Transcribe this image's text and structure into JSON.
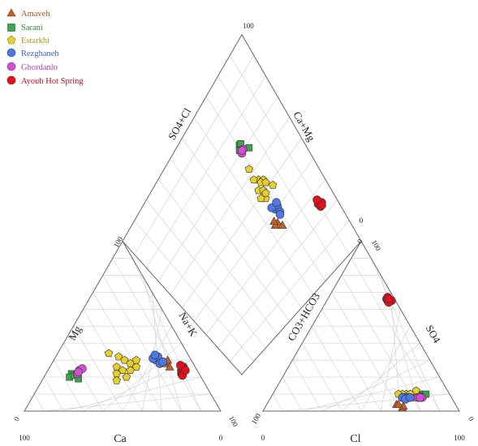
{
  "chart_data": {
    "type": "scatter",
    "subtype": "piper-trilinear-diagram",
    "grid": true,
    "legend_position": "top-left",
    "labels": {
      "cation_left": "Mg",
      "cation_right": "Na+K",
      "cation_bottom": "Ca",
      "anion_left": "CO3+HCO3",
      "anion_right": "SO4",
      "anion_bottom": "Cl",
      "diamond_upper_left": "SO4+Cl",
      "diamond_upper_right": "Ca+Mg"
    },
    "tick_labels": {
      "cat_bottom_left": "100",
      "cat_bottom_right": "0",
      "cat_left_top": "100",
      "cat_left_bottom": "0",
      "cat_right_bottom": "100",
      "an_bottom_left": "0",
      "an_bottom_right": "100",
      "an_left_top": "0",
      "an_left_bottom": "100",
      "an_right_top": "100",
      "an_right_bottom": "0",
      "diamond_top": "100",
      "diamond_right": "0"
    },
    "series": [
      {
        "name": "Amaveh",
        "color": "#c0622a",
        "marker": "triangle",
        "points": [
          [
            28,
            14,
            58,
            28,
            70,
            2
          ],
          [
            30,
            12,
            58,
            30,
            66,
            4
          ],
          [
            26,
            13,
            61,
            27,
            70,
            3
          ],
          [
            29,
            15,
            56,
            29,
            67,
            4
          ]
        ]
      },
      {
        "name": "Sarani",
        "color": "#3aa64a",
        "marker": "square",
        "points": [
          [
            22,
            65,
            13,
            15,
            75,
            10
          ],
          [
            20,
            67,
            13,
            14,
            77,
            9
          ],
          [
            21,
            64,
            15,
            17,
            73,
            10
          ],
          [
            19,
            63,
            18,
            12,
            78,
            10
          ]
        ]
      },
      {
        "name": "Estarkhi",
        "color": "#e7cf2c",
        "marker": "pentagon",
        "points": [
          [
            26,
            40,
            34,
            20,
            70,
            10
          ],
          [
            32,
            36,
            32,
            22,
            68,
            10
          ],
          [
            24,
            38,
            38,
            24,
            66,
            10
          ],
          [
            30,
            34,
            36,
            18,
            72,
            10
          ],
          [
            22,
            42,
            36,
            20,
            72,
            8
          ],
          [
            28,
            32,
            40,
            22,
            70,
            8
          ],
          [
            20,
            38,
            42,
            16,
            72,
            12
          ],
          [
            26,
            30,
            44,
            24,
            68,
            8
          ],
          [
            34,
            40,
            26,
            20,
            70,
            10
          ],
          [
            18,
            44,
            38,
            18,
            74,
            8
          ],
          [
            30,
            28,
            42,
            22,
            70,
            8
          ],
          [
            24,
            34,
            42,
            26,
            64,
            10
          ]
        ]
      },
      {
        "name": "Rezghaneh",
        "color": "#4f78e6",
        "marker": "circle",
        "points": [
          [
            30,
            18,
            52,
            24,
            68,
            8
          ],
          [
            32,
            16,
            52,
            22,
            70,
            8
          ],
          [
            28,
            17,
            55,
            23,
            69,
            8
          ],
          [
            31,
            19,
            50,
            25,
            67,
            8
          ],
          [
            29,
            15,
            56,
            24,
            69,
            7
          ],
          [
            33,
            17,
            50,
            21,
            71,
            8
          ]
        ]
      },
      {
        "name": "Ghordanlo",
        "color": "#d24fd6",
        "marker": "circle",
        "points": [
          [
            24,
            60,
            16,
            16,
            76,
            8
          ],
          [
            22,
            62,
            16,
            15,
            77,
            8
          ],
          [
            25,
            58,
            17,
            17,
            75,
            8
          ],
          [
            23,
            61,
            16,
            16,
            76,
            8
          ]
        ]
      },
      {
        "name": "Ayoub Hot Spring",
        "color": "#e0101c",
        "marker": "circle",
        "points": [
          [
            24,
            8,
            68,
            3,
            31,
            66
          ],
          [
            26,
            6,
            68,
            4,
            30,
            66
          ],
          [
            22,
            9,
            69,
            3,
            32,
            65
          ],
          [
            25,
            7,
            68,
            4,
            31,
            65
          ],
          [
            23,
            8,
            69,
            2,
            33,
            65
          ],
          [
            27,
            7,
            66,
            3,
            30,
            67
          ],
          [
            21,
            9,
            70,
            4,
            32,
            64
          ],
          [
            24,
            6,
            70,
            3,
            31,
            66
          ]
        ]
      }
    ]
  }
}
